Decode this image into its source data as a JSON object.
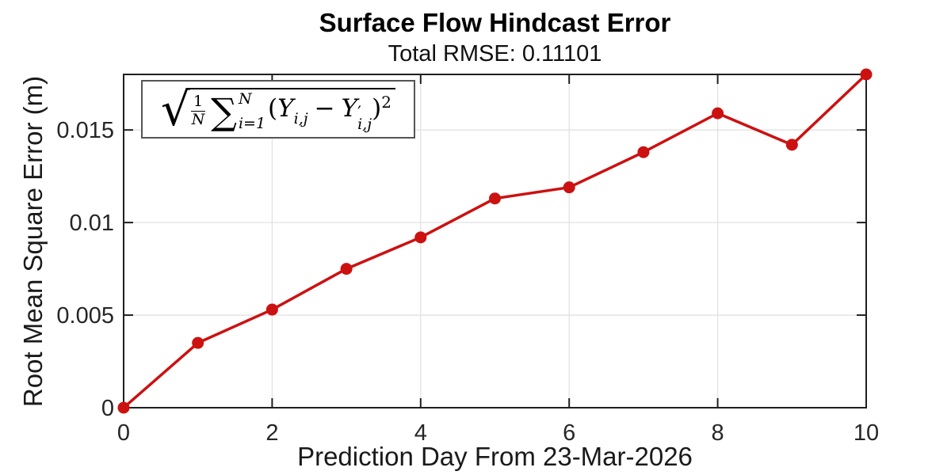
{
  "title": "Surface Flow Hindcast Error",
  "subtitle": "Total RMSE: 0.11101",
  "formula": {
    "radical": "√",
    "frac_num": "1",
    "frac_den": "N",
    "sigma": "∑",
    "sum_upper": "N",
    "sum_lower": "i=1",
    "lparen": "(",
    "term1": "Y",
    "term1_sub": "i,j",
    "minus": "−",
    "term2": "Y",
    "term2_prime": "′",
    "term2_sub": "i,j",
    "rparen": ")",
    "power": "2",
    "as_text": "sqrt( (1/N) * sum_{i=1}^{N} (Y_ij - Y'_ij)^2 )"
  },
  "chart_data": {
    "type": "line",
    "title": "Surface Flow Hindcast Error",
    "subtitle": "Total RMSE: 0.11101",
    "xlabel": "Prediction Day From 23-Mar-2026",
    "ylabel": "Root Mean Square Error (m)",
    "x": [
      0,
      1,
      2,
      3,
      4,
      5,
      6,
      7,
      8,
      9,
      10
    ],
    "y": [
      0,
      0.0035,
      0.0053,
      0.0075,
      0.0092,
      0.0113,
      0.0119,
      0.0138,
      0.0159,
      0.0142,
      0.018
    ],
    "xlim": [
      0,
      10
    ],
    "ylim": [
      0,
      0.018
    ],
    "xticks": [
      0,
      2,
      4,
      6,
      8,
      10
    ],
    "xtick_labels": [
      "0",
      "2",
      "4",
      "6",
      "8",
      "10"
    ],
    "yticks": [
      0,
      0.005,
      0.01,
      0.015
    ],
    "ytick_labels": [
      "0",
      "0.005",
      "0.01",
      "0.015"
    ],
    "grid": true,
    "legend": "none",
    "line_color": "#cc1111",
    "marker": "filled-circle",
    "annotation": "sqrt( (1/N) * sum_{i=1}^{N} (Y_ij - Y'_ij)^2 )"
  },
  "colors": {
    "line": "#cc1111",
    "grid": "#e2e2e2",
    "axis": "#1f1f1f",
    "tick_text": "#262626",
    "formula_border": "#555555"
  }
}
